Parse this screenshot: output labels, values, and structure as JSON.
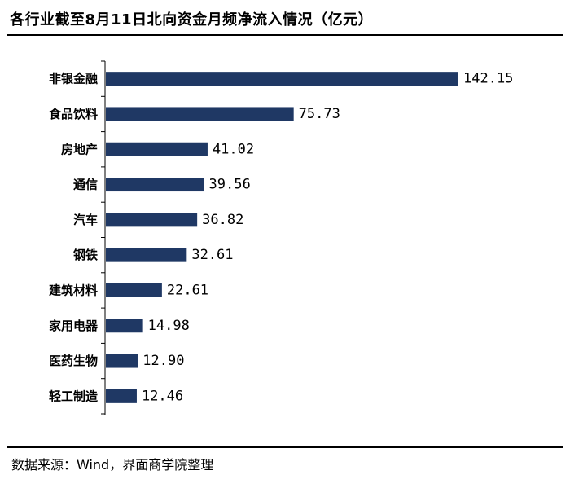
{
  "title": "各行业截至8月11日北向资金月频净流入情况（亿元）",
  "source": "数据来源：Wind，界面商学院整理",
  "colors": {
    "bar": "#1f3864",
    "axis": "#000000"
  },
  "chart_data": {
    "type": "bar",
    "orientation": "horizontal",
    "title": "各行业截至8月11日北向资金月频净流入情况（亿元）",
    "unit": "亿元",
    "categories": [
      "非银金融",
      "食品饮料",
      "房地产",
      "通信",
      "汽车",
      "钢铁",
      "建筑材料",
      "家用电器",
      "医药生物",
      "轻工制造"
    ],
    "values": [
      142.15,
      75.73,
      41.02,
      39.56,
      36.82,
      32.61,
      22.61,
      14.98,
      12.9,
      12.46
    ],
    "value_labels": [
      "142.15",
      "75.73",
      "41.02",
      "39.56",
      "36.82",
      "32.61",
      "22.61",
      "14.98",
      "12.90",
      "12.46"
    ],
    "xlim": [
      0,
      142.15
    ],
    "grid": false,
    "legend": "none"
  }
}
